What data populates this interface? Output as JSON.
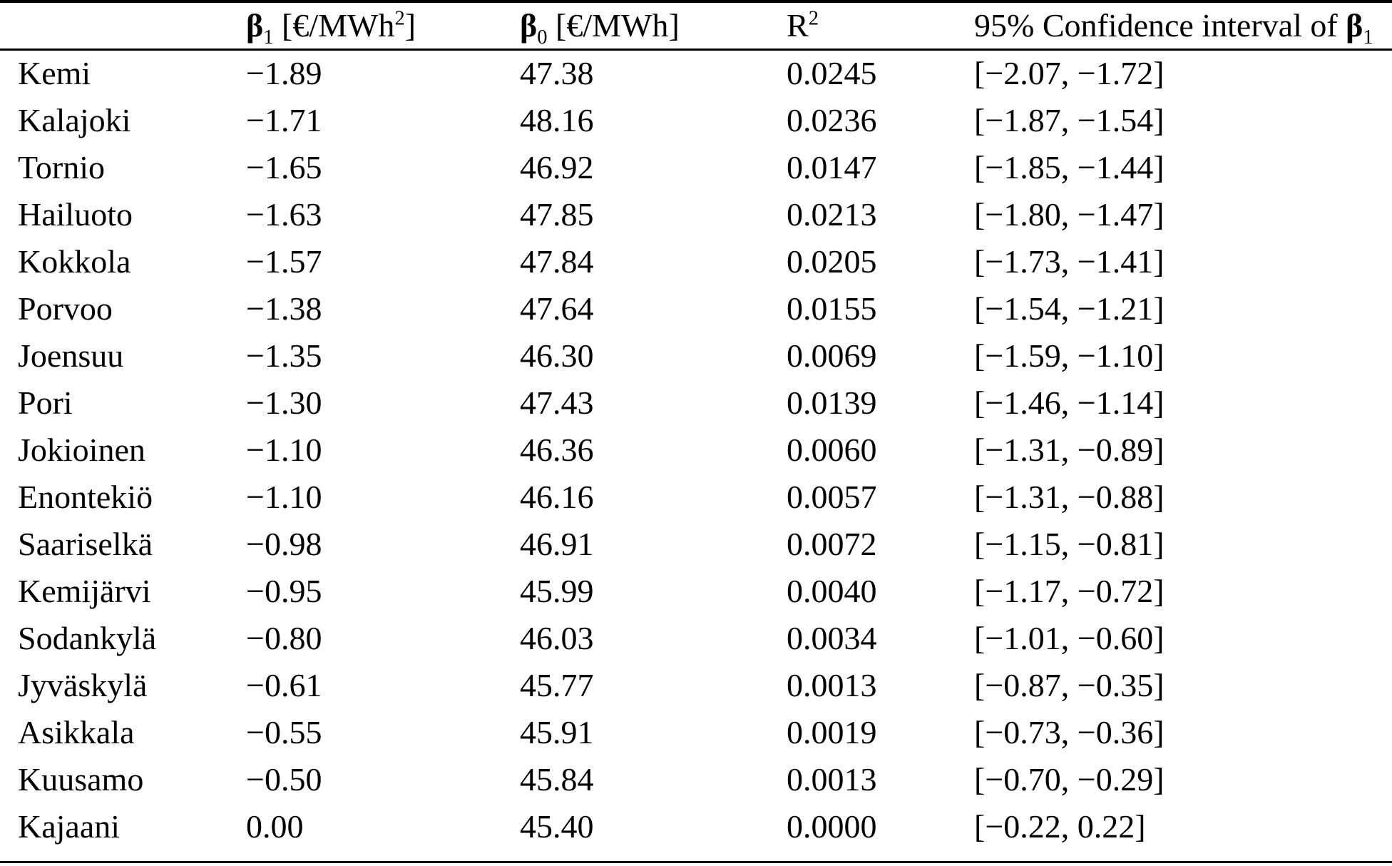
{
  "table": {
    "columns": {
      "location": "",
      "beta1": {
        "sym": "β",
        "sub": "1",
        "unit_pre": " [€/MWh",
        "sup": "2",
        "unit_post": "]"
      },
      "beta0": {
        "sym": "β",
        "sub": "0",
        "unit_pre": " [€/MWh",
        "unit_post": "]"
      },
      "r2": {
        "main": "R",
        "sup": "2"
      },
      "ci": {
        "pre": "95% Confidence interval of ",
        "sym": "β",
        "sub": "1"
      }
    },
    "rows": [
      {
        "location": "Kemi",
        "beta1": "−1.89",
        "beta0": "47.38",
        "r2": "0.0245",
        "ci": "[−2.07, −1.72]"
      },
      {
        "location": "Kalajoki",
        "beta1": "−1.71",
        "beta0": "48.16",
        "r2": "0.0236",
        "ci": "[−1.87, −1.54]"
      },
      {
        "location": "Tornio",
        "beta1": "−1.65",
        "beta0": "46.92",
        "r2": "0.0147",
        "ci": "[−1.85, −1.44]"
      },
      {
        "location": "Hailuoto",
        "beta1": "−1.63",
        "beta0": "47.85",
        "r2": "0.0213",
        "ci": "[−1.80, −1.47]"
      },
      {
        "location": "Kokkola",
        "beta1": "−1.57",
        "beta0": "47.84",
        "r2": "0.0205",
        "ci": "[−1.73, −1.41]"
      },
      {
        "location": "Porvoo",
        "beta1": "−1.38",
        "beta0": "47.64",
        "r2": "0.0155",
        "ci": "[−1.54, −1.21]"
      },
      {
        "location": "Joensuu",
        "beta1": "−1.35",
        "beta0": "46.30",
        "r2": "0.0069",
        "ci": "[−1.59, −1.10]"
      },
      {
        "location": "Pori",
        "beta1": "−1.30",
        "beta0": "47.43",
        "r2": "0.0139",
        "ci": "[−1.46, −1.14]"
      },
      {
        "location": "Jokioinen",
        "beta1": "−1.10",
        "beta0": "46.36",
        "r2": "0.0060",
        "ci": "[−1.31, −0.89]"
      },
      {
        "location": "Enontekiö",
        "beta1": "−1.10",
        "beta0": "46.16",
        "r2": "0.0057",
        "ci": "[−1.31, −0.88]"
      },
      {
        "location": "Saariselkä",
        "beta1": "−0.98",
        "beta0": "46.91",
        "r2": "0.0072",
        "ci": "[−1.15, −0.81]"
      },
      {
        "location": "Kemijärvi",
        "beta1": "−0.95",
        "beta0": "45.99",
        "r2": "0.0040",
        "ci": "[−1.17, −0.72]"
      },
      {
        "location": "Sodankylä",
        "beta1": "−0.80",
        "beta0": "46.03",
        "r2": "0.0034",
        "ci": "[−1.01, −0.60]"
      },
      {
        "location": "Jyväskylä",
        "beta1": "−0.61",
        "beta0": "45.77",
        "r2": "0.0013",
        "ci": "[−0.87, −0.35]"
      },
      {
        "location": "Asikkala",
        "beta1": "−0.55",
        "beta0": "45.91",
        "r2": "0.0019",
        "ci": "[−0.73, −0.36]"
      },
      {
        "location": "Kuusamo",
        "beta1": "−0.50",
        "beta0": "45.84",
        "r2": "0.0013",
        "ci": "[−0.70, −0.29]"
      },
      {
        "location": "Kajaani",
        "beta1": "0.00",
        "beta0": "45.40",
        "r2": "0.0000",
        "ci": "[−0.22, 0.22]"
      }
    ]
  }
}
